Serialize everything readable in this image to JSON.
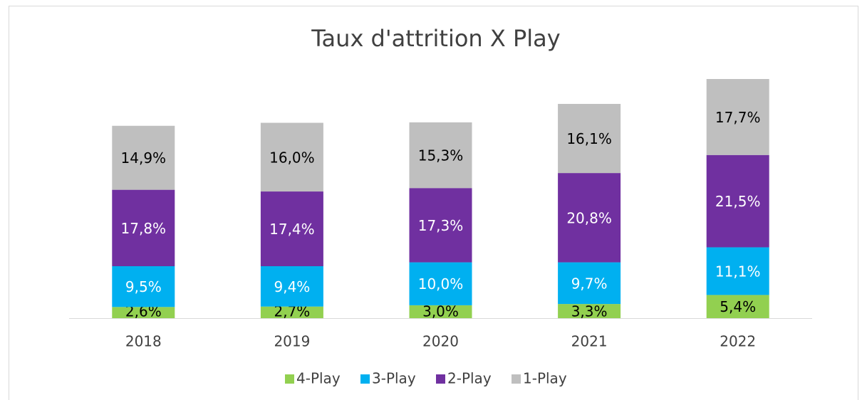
{
  "chart_data": {
    "type": "stacked-bar",
    "title": "Taux d'attrition X Play",
    "categories": [
      "2018",
      "2019",
      "2020",
      "2021",
      "2022"
    ],
    "series": [
      {
        "name": "4-Play",
        "color": "#92d050",
        "values": [
          2.6,
          2.7,
          3.0,
          3.3,
          5.4
        ],
        "value_labels": [
          "2,6%",
          "2,7%",
          "3,0%",
          "3,3%",
          "5,4%"
        ]
      },
      {
        "name": "3-Play",
        "color": "#00b0f0",
        "values": [
          9.5,
          9.4,
          10.0,
          9.7,
          11.1
        ],
        "value_labels": [
          "9,5%",
          "9,4%",
          "10,0%",
          "9,7%",
          "11,1%"
        ]
      },
      {
        "name": "2-Play",
        "color": "#7030a0",
        "values": [
          17.8,
          17.4,
          17.3,
          20.8,
          21.5
        ],
        "value_labels": [
          "17,8%",
          "17,4%",
          "17,3%",
          "20,8%",
          "21,5%"
        ]
      },
      {
        "name": "1-Play",
        "color": "#bfbfbf",
        "values": [
          14.9,
          16.0,
          15.3,
          16.1,
          17.7
        ],
        "value_labels": [
          "14,9%",
          "16,0%",
          "15,3%",
          "16,1%",
          "17,7%"
        ]
      }
    ],
    "legend": "bottom"
  }
}
